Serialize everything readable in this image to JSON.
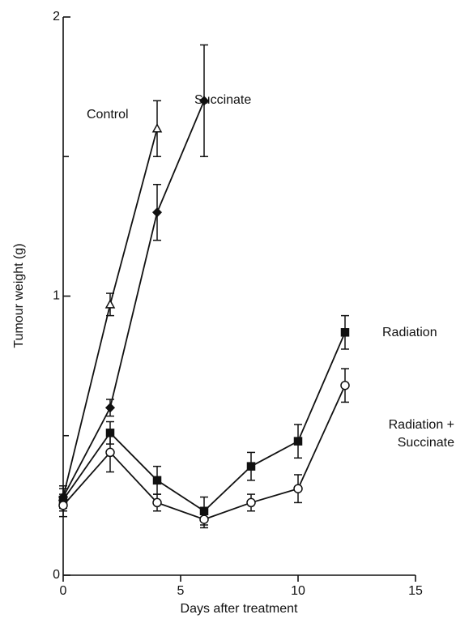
{
  "chart_data": {
    "type": "line",
    "x_label": "Days after treatment",
    "y_label": "Tumour weight (g)",
    "xlim": [
      0,
      15
    ],
    "xticks": [
      0,
      5,
      10,
      15
    ],
    "ylim": [
      0,
      2
    ],
    "yticks": [
      0,
      1,
      2
    ],
    "yminor": [
      0.5,
      1.5
    ],
    "series": [
      {
        "name": "Control",
        "color": "#111111",
        "marker": "triangle-open",
        "x": [
          0,
          2,
          4
        ],
        "values": [
          0.28,
          0.97,
          1.6
        ],
        "errors": [
          0.04,
          0.04,
          0.1
        ]
      },
      {
        "name": "Succinate",
        "color": "#111111",
        "marker": "diamond-filled",
        "x": [
          0,
          2,
          4,
          6
        ],
        "values": [
          0.28,
          0.6,
          1.3,
          1.7
        ],
        "errors": [
          0.04,
          0.03,
          0.1,
          0.2
        ]
      },
      {
        "name": "Radiation",
        "color": "#111111",
        "marker": "square-filled",
        "x": [
          0,
          2,
          4,
          6,
          8,
          10,
          12
        ],
        "values": [
          0.27,
          0.51,
          0.34,
          0.23,
          0.39,
          0.48,
          0.87
        ],
        "errors": [
          0.04,
          0.04,
          0.05,
          0.05,
          0.05,
          0.06,
          0.06
        ]
      },
      {
        "name": "Radiation + Succinate",
        "color": "#111111",
        "marker": "circle-open",
        "x": [
          0,
          2,
          4,
          6,
          8,
          10,
          12
        ],
        "values": [
          0.25,
          0.44,
          0.26,
          0.2,
          0.26,
          0.31,
          0.68
        ],
        "errors": [
          0.04,
          0.07,
          0.03,
          0.03,
          0.03,
          0.05,
          0.06
        ]
      }
    ]
  }
}
